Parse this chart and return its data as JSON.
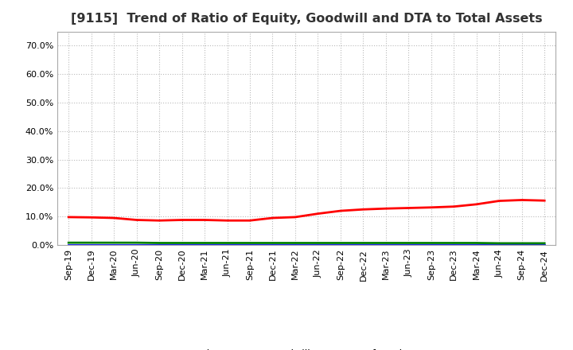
{
  "title": "[9115]  Trend of Ratio of Equity, Goodwill and DTA to Total Assets",
  "x_labels": [
    "Sep-19",
    "Dec-19",
    "Mar-20",
    "Jun-20",
    "Sep-20",
    "Dec-20",
    "Mar-21",
    "Jun-21",
    "Sep-21",
    "Dec-21",
    "Mar-22",
    "Jun-22",
    "Sep-22",
    "Dec-22",
    "Mar-23",
    "Jun-23",
    "Sep-23",
    "Dec-23",
    "Mar-24",
    "Jun-24",
    "Sep-24",
    "Dec-24"
  ],
  "equity": [
    0.098,
    0.097,
    0.095,
    0.088,
    0.086,
    0.088,
    0.088,
    0.086,
    0.086,
    0.095,
    0.098,
    0.11,
    0.12,
    0.125,
    0.128,
    0.13,
    0.132,
    0.135,
    0.143,
    0.155,
    0.158,
    0.156
  ],
  "goodwill": [
    0.001,
    0.001,
    0.001,
    0.001,
    0.001,
    0.001,
    0.001,
    0.001,
    0.001,
    0.001,
    0.001,
    0.001,
    0.001,
    0.001,
    0.001,
    0.001,
    0.001,
    0.001,
    0.001,
    0.001,
    0.001,
    0.001
  ],
  "dta": [
    0.008,
    0.008,
    0.008,
    0.008,
    0.007,
    0.007,
    0.007,
    0.007,
    0.007,
    0.007,
    0.007,
    0.007,
    0.007,
    0.007,
    0.007,
    0.007,
    0.007,
    0.007,
    0.007,
    0.006,
    0.006,
    0.006
  ],
  "equity_color": "#ff0000",
  "goodwill_color": "#0000ff",
  "dta_color": "#008000",
  "ylim": [
    0,
    0.75
  ],
  "yticks": [
    0.0,
    0.1,
    0.2,
    0.3,
    0.4,
    0.5,
    0.6,
    0.7
  ],
  "background_color": "#ffffff",
  "plot_bg_color": "#ffffff",
  "grid_color": "#bbbbbb",
  "title_color": "#333333",
  "title_fontsize": 11.5,
  "tick_fontsize": 8,
  "legend_fontsize": 9
}
